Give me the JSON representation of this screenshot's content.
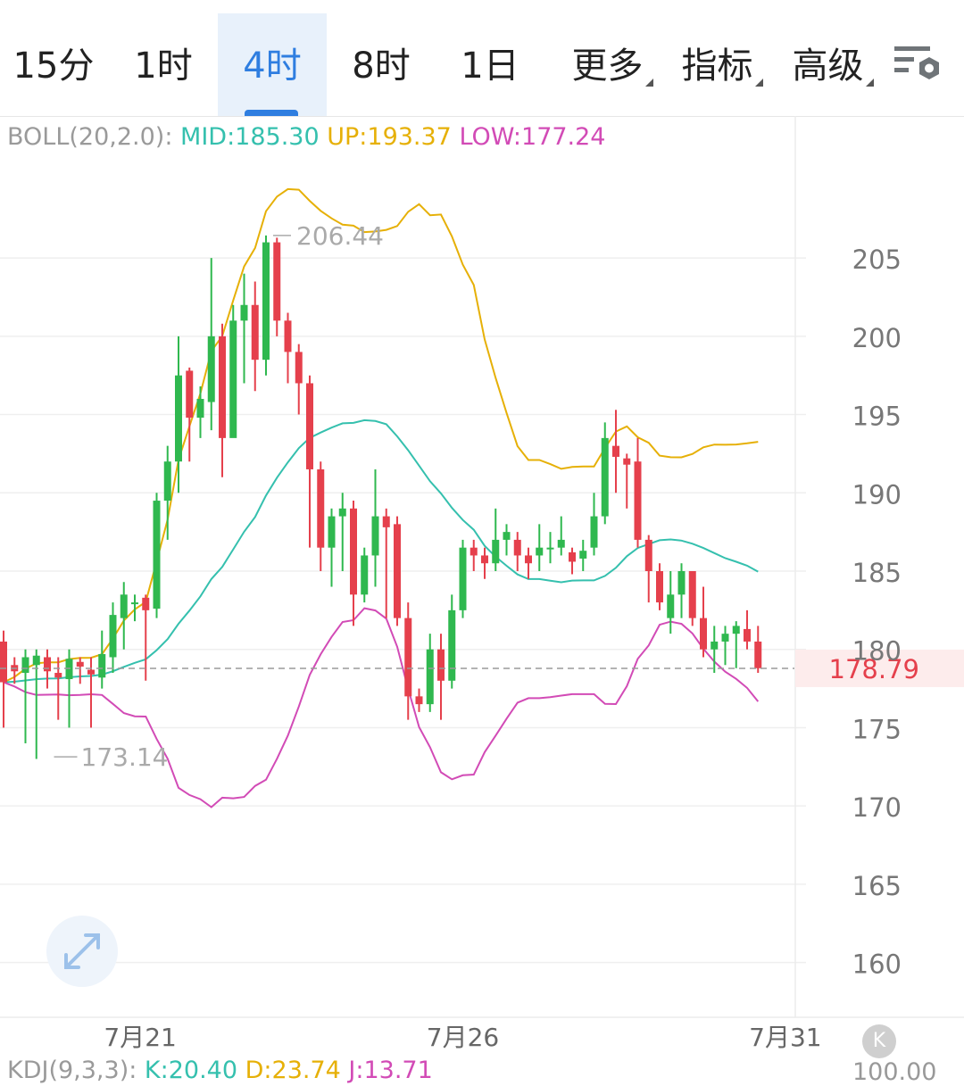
{
  "tabs": [
    {
      "label": "15分",
      "active": false
    },
    {
      "label": "1时",
      "active": false
    },
    {
      "label": "4时",
      "active": true
    },
    {
      "label": "8时",
      "active": false
    },
    {
      "label": "1日",
      "active": false
    },
    {
      "label": "更多",
      "active": false,
      "dropdown": true
    },
    {
      "label": "指标",
      "active": false,
      "dropdown": true
    },
    {
      "label": "高级",
      "active": false,
      "dropdown": true
    }
  ],
  "settings_icon": "chart-settings-icon",
  "boll": {
    "name": "BOLL(20,2.0):",
    "mid": "MID:185.30",
    "up": "UP:193.37",
    "low": "LOW:177.24"
  },
  "kdj": {
    "name": "KDJ(9,3,3):",
    "k": "K:20.40",
    "d": "D:23.74",
    "j": "J:13.71",
    "axis_top": "100.00"
  },
  "colors": {
    "up_candle": "#2fb84f",
    "down_candle": "#e5404c",
    "mid": "#35c0ae",
    "upper": "#e6b007",
    "lower": "#d24bb6",
    "active_tab": "#2f7ee0",
    "price_line": "#e5404c"
  },
  "chart_data": {
    "type": "candlestick",
    "y_ticks": [
      205,
      200,
      195,
      190,
      185,
      180,
      175,
      170,
      165,
      160
    ],
    "ylim": [
      156.5,
      213.5
    ],
    "x_ticks": [
      "7月21",
      "7月26",
      "7月31"
    ],
    "last_price": "178.79",
    "high_marker": "206.44",
    "low_marker": "173.14",
    "candles": [
      [
        180.5,
        177.9,
        181.2,
        175.0
      ],
      [
        179.0,
        178.6,
        179.5,
        177.8
      ],
      [
        178.5,
        179.5,
        180.0,
        174.0
      ],
      [
        179.0,
        179.6,
        180.0,
        173.0
      ],
      [
        179.5,
        178.6,
        180.0,
        177.5
      ],
      [
        178.5,
        178.2,
        179.5,
        175.5
      ],
      [
        178.1,
        179.4,
        180.0,
        175.0
      ],
      [
        179.2,
        178.9,
        179.5,
        177.8
      ],
      [
        178.7,
        178.4,
        179.5,
        175.0
      ],
      [
        178.2,
        179.7,
        181.2,
        177.5
      ],
      [
        179.5,
        182.2,
        183.0,
        178.5
      ],
      [
        182.0,
        183.5,
        184.3,
        180.0
      ],
      [
        183.0,
        183.0,
        183.5,
        181.8
      ],
      [
        183.3,
        182.5,
        183.5,
        178.0
      ],
      [
        182.6,
        189.5,
        190.0,
        182.0
      ],
      [
        189.5,
        192.0,
        193.0,
        187.0
      ],
      [
        192.0,
        197.5,
        200.0,
        190.0
      ],
      [
        197.8,
        194.8,
        198.0,
        192.0
      ],
      [
        194.8,
        196.0,
        196.8,
        193.5
      ],
      [
        195.8,
        200.0,
        205.0,
        194.0
      ],
      [
        200.0,
        193.5,
        200.8,
        191.0
      ],
      [
        193.5,
        201.0,
        202.0,
        194.5
      ],
      [
        201.0,
        202.0,
        204.0,
        197.0
      ],
      [
        202.0,
        198.5,
        203.5,
        196.5
      ],
      [
        198.5,
        206.0,
        206.44,
        197.5
      ],
      [
        206.0,
        201.0,
        206.3,
        200.0
      ],
      [
        201.0,
        199.0,
        201.5,
        197.0
      ],
      [
        199.0,
        197.0,
        199.5,
        195.0
      ],
      [
        197.0,
        191.5,
        197.5,
        186.5
      ],
      [
        191.5,
        186.5,
        192.0,
        185.0
      ],
      [
        186.5,
        188.5,
        189.0,
        184.0
      ],
      [
        188.5,
        189.0,
        190.0,
        185.0
      ],
      [
        189.0,
        183.5,
        189.5,
        181.5
      ],
      [
        183.5,
        186.0,
        186.5,
        183.0
      ],
      [
        186.0,
        188.5,
        191.5,
        184.0
      ],
      [
        188.5,
        187.8,
        189.0,
        182.0
      ],
      [
        188.0,
        182.0,
        188.5,
        181.5
      ],
      [
        182.0,
        177.0,
        183.0,
        175.5
      ],
      [
        177.0,
        176.5,
        177.5,
        176.0
      ],
      [
        176.5,
        180.0,
        181.0,
        176.0
      ],
      [
        180.0,
        178.0,
        181.0,
        175.5
      ],
      [
        178.0,
        182.5,
        183.5,
        177.5
      ],
      [
        182.5,
        186.5,
        187.0,
        182.0
      ],
      [
        186.5,
        186.0,
        187.0,
        185.0
      ],
      [
        186.0,
        185.5,
        186.5,
        184.5
      ],
      [
        185.5,
        187.0,
        189.0,
        185.0
      ],
      [
        187.0,
        187.5,
        188.0,
        186.0
      ],
      [
        187.0,
        186.0,
        187.5,
        185.0
      ],
      [
        186.0,
        185.5,
        186.5,
        184.5
      ],
      [
        186.0,
        186.5,
        188.0,
        185.0
      ],
      [
        186.5,
        186.5,
        187.5,
        185.5
      ],
      [
        186.5,
        187.0,
        188.5,
        186.0
      ],
      [
        186.2,
        185.6,
        186.5,
        184.8
      ],
      [
        185.8,
        186.3,
        187.0,
        185.0
      ],
      [
        186.5,
        188.5,
        190.0,
        186.0
      ],
      [
        188.5,
        193.5,
        194.5,
        188.0
      ],
      [
        193.0,
        192.3,
        195.3,
        190.0
      ],
      [
        192.2,
        191.8,
        192.5,
        189.0
      ],
      [
        192.0,
        187.0,
        193.5,
        186.5
      ],
      [
        187.0,
        185.0,
        187.3,
        183.0
      ],
      [
        185.0,
        183.0,
        185.5,
        182.5
      ],
      [
        182.0,
        183.5,
        185.0,
        181.0
      ],
      [
        183.5,
        185.0,
        185.5,
        182.0
      ],
      [
        185.0,
        182.0,
        185.0,
        181.5
      ],
      [
        182.0,
        180.0,
        184.0,
        179.5
      ],
      [
        180.0,
        180.5,
        181.5,
        178.5
      ],
      [
        180.5,
        181.0,
        181.5,
        179.0
      ],
      [
        181.0,
        181.5,
        181.8,
        178.8
      ],
      [
        181.3,
        180.5,
        182.5,
        180.0
      ],
      [
        180.5,
        178.8,
        181.5,
        178.5
      ]
    ]
  }
}
